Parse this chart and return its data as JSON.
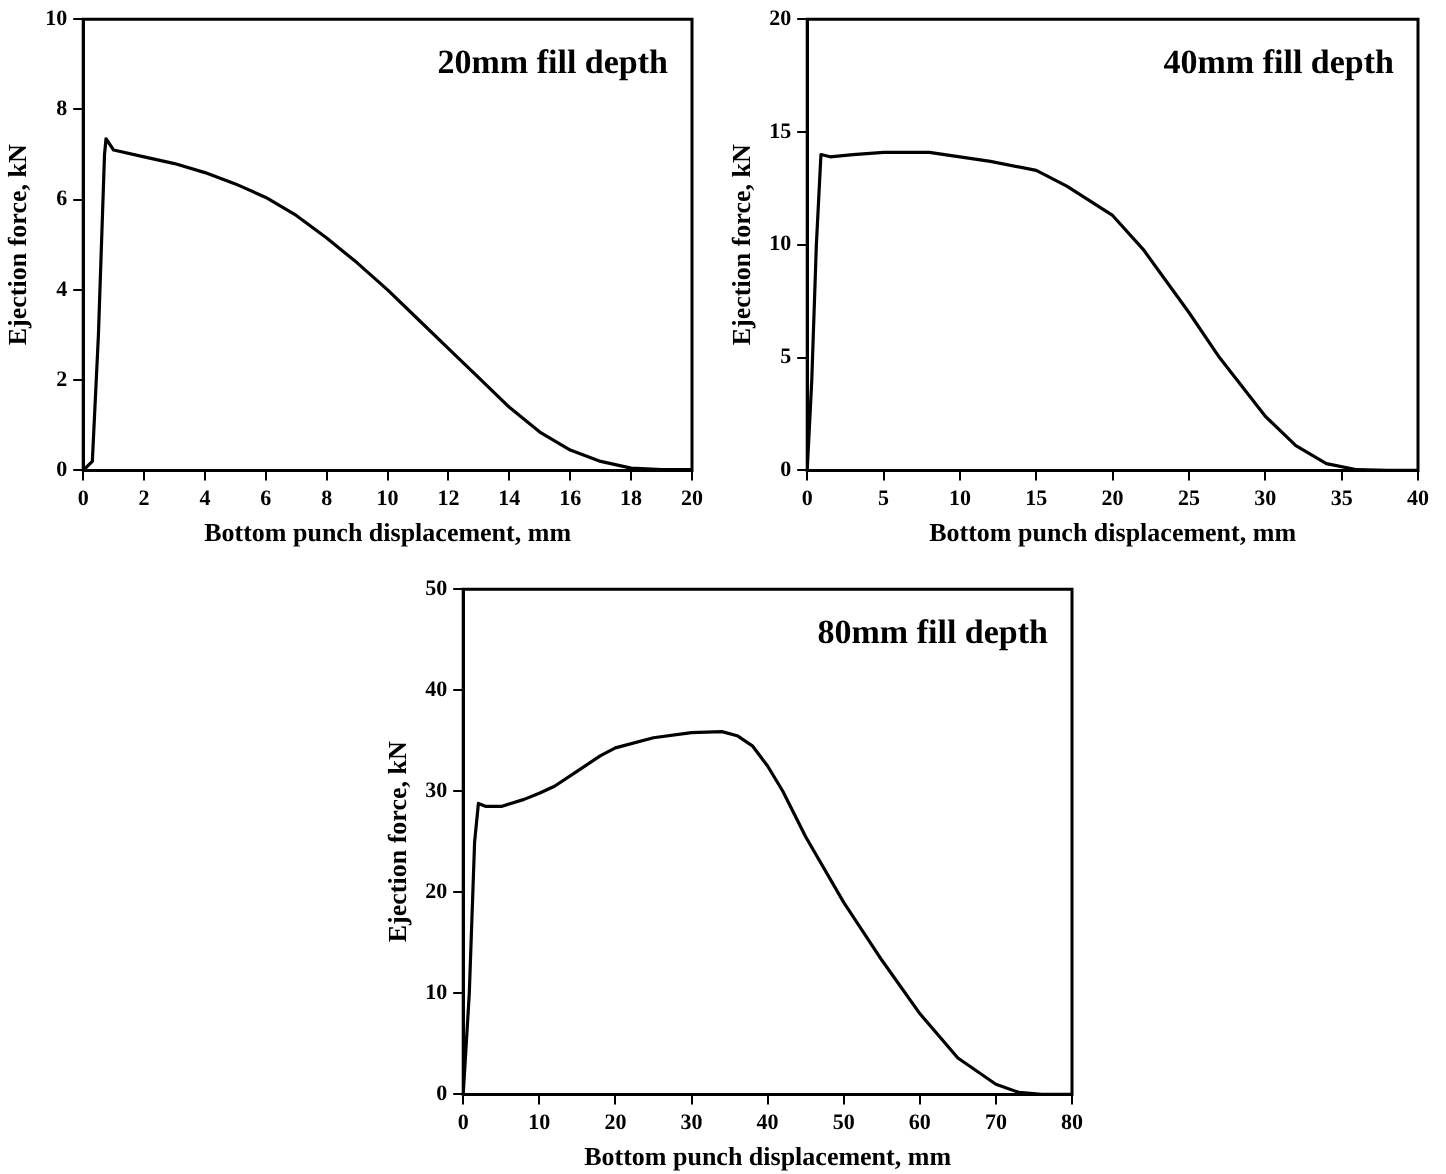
{
  "chart_data": [
    {
      "type": "line",
      "title": "20mm fill depth",
      "xlabel": "Bottom punch displacement, mm",
      "ylabel": "Ejection force, kN",
      "x": [
        0,
        0.3,
        0.5,
        0.7,
        0.75,
        1,
        2,
        3,
        4,
        5,
        6,
        7,
        8,
        9,
        10,
        11,
        12,
        13,
        14,
        15,
        16,
        17,
        18,
        19,
        20
      ],
      "series": [
        {
          "color": "#000000",
          "values": [
            0,
            0.2,
            3,
            7.0,
            7.35,
            7.1,
            6.95,
            6.8,
            6.6,
            6.35,
            6.05,
            5.65,
            5.15,
            4.6,
            4.0,
            3.35,
            2.7,
            2.05,
            1.4,
            0.85,
            0.45,
            0.2,
            0.05,
            0.02,
            0.02
          ]
        }
      ],
      "xlim": [
        0,
        20
      ],
      "xticks": [
        0,
        2,
        4,
        6,
        8,
        10,
        12,
        14,
        16,
        18,
        20
      ],
      "ylim": [
        0,
        10
      ],
      "yticks": [
        0,
        2,
        4,
        6,
        8,
        10
      ],
      "grid": false,
      "legend": false,
      "marker": "none",
      "line_style": "solid"
    },
    {
      "type": "line",
      "title": "40mm fill depth",
      "xlabel": "Bottom punch displacement, mm",
      "ylabel": "Ejection force, kN",
      "x": [
        0,
        0.3,
        0.6,
        0.9,
        1.5,
        3,
        5,
        8,
        10,
        12,
        15,
        17,
        20,
        22,
        25,
        27,
        30,
        32,
        34,
        36,
        38,
        40
      ],
      "series": [
        {
          "color": "#000000",
          "values": [
            0,
            4,
            10,
            14.0,
            13.9,
            14.0,
            14.1,
            14.1,
            13.9,
            13.7,
            13.3,
            12.6,
            11.3,
            9.8,
            7.0,
            5.0,
            2.4,
            1.1,
            0.3,
            0.03,
            0,
            0
          ]
        }
      ],
      "xlim": [
        0,
        40
      ],
      "xticks": [
        0,
        5,
        10,
        15,
        20,
        25,
        30,
        35,
        40
      ],
      "ylim": [
        0,
        20
      ],
      "yticks": [
        0,
        5,
        10,
        15,
        20
      ],
      "grid": false,
      "legend": false,
      "marker": "none",
      "line_style": "solid"
    },
    {
      "type": "line",
      "title": "80mm fill depth",
      "xlabel": "Bottom punch displacement, mm",
      "ylabel": "Ejection force, kN",
      "x": [
        0,
        0.8,
        1.5,
        2,
        3,
        5,
        8,
        10,
        12,
        15,
        18,
        20,
        25,
        30,
        34,
        36,
        38,
        40,
        42,
        45,
        50,
        55,
        60,
        65,
        70,
        73,
        76,
        80
      ],
      "series": [
        {
          "color": "#000000",
          "values": [
            0,
            10,
            25,
            28.8,
            28.5,
            28.5,
            29.2,
            29.8,
            30.5,
            32.0,
            33.5,
            34.3,
            35.3,
            35.8,
            35.9,
            35.5,
            34.5,
            32.5,
            30,
            25.5,
            19,
            13.3,
            8,
            3.6,
            1,
            0.2,
            0,
            0
          ]
        }
      ],
      "xlim": [
        0,
        80
      ],
      "xticks": [
        0,
        10,
        20,
        30,
        40,
        50,
        60,
        70,
        80
      ],
      "ylim": [
        0,
        50
      ],
      "yticks": [
        0,
        10,
        20,
        30,
        40,
        50
      ],
      "grid": false,
      "legend": false,
      "marker": "none",
      "line_style": "solid"
    }
  ]
}
